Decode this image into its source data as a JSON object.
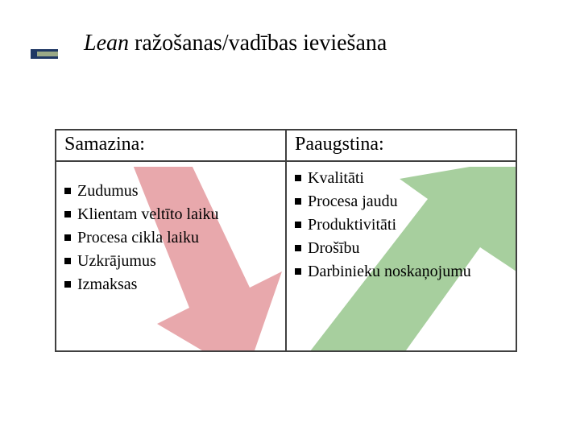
{
  "title_lean": "Lean",
  "title_rest": " ražošanas/vadības ieviešana",
  "accent": {
    "outer": "#1f3864",
    "inner": "#9aa987"
  },
  "left": {
    "header": "Samazina:",
    "items": [
      "Zudumus",
      "Klientam veltīto laiku",
      "Procesa cikla laiku",
      "Uzkrājumus",
      "Izmaksas"
    ],
    "arrow_color": "#e8a8ac"
  },
  "right": {
    "header": "Paaugstina:",
    "items": [
      "Kvalitāti",
      "Procesa jaudu",
      "Produktivitāti",
      "Drošību",
      "Darbinieku noskaņojumu"
    ],
    "arrow_color": "#a7cf9e"
  },
  "border_color": "#404040",
  "title_fontsize": 28,
  "header_fontsize": 24,
  "body_fontsize": 20,
  "bullet_size": 8
}
